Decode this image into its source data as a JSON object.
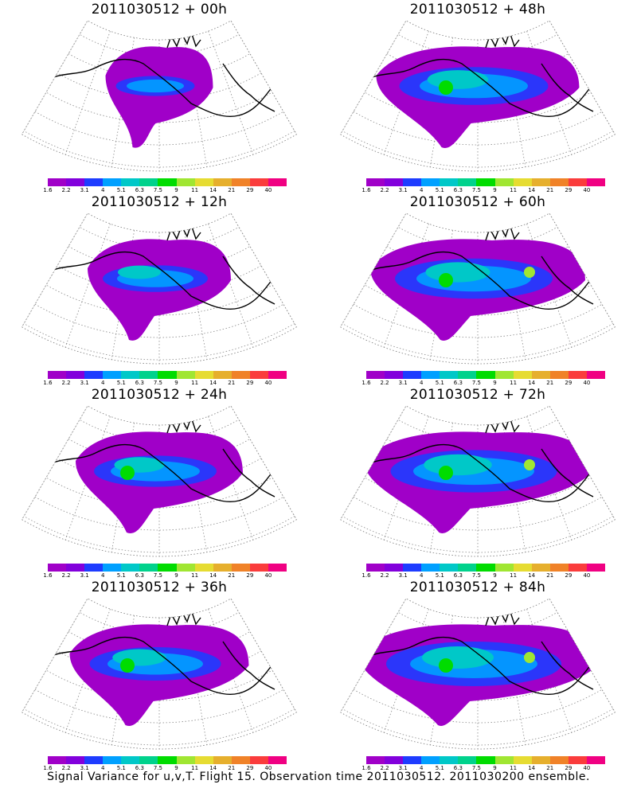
{
  "panels": [
    {
      "title": "2011030512 + 00h",
      "label": "00h",
      "intensity": 0.1,
      "extent": 0.45
    },
    {
      "title": "2011030512 + 48h",
      "label": "48h",
      "intensity": 0.4,
      "extent": 0.85
    },
    {
      "title": "2011030512 + 12h",
      "label": "12h",
      "intensity": 0.2,
      "extent": 0.6
    },
    {
      "title": "2011030512 + 60h",
      "label": "60h",
      "intensity": 0.45,
      "extent": 0.9
    },
    {
      "title": "2011030512 + 24h",
      "label": "24h",
      "intensity": 0.3,
      "extent": 0.7
    },
    {
      "title": "2011030512 + 72h",
      "label": "72h",
      "intensity": 0.5,
      "extent": 0.95
    },
    {
      "title": "2011030512 + 36h",
      "label": "36h",
      "intensity": 0.35,
      "extent": 0.75
    },
    {
      "title": "2011030512 + 84h",
      "label": "84h",
      "intensity": 0.55,
      "extent": 1.0
    }
  ],
  "colorbar": {
    "labels": [
      "1.6",
      "2.2",
      "3.1",
      "4",
      "5.1",
      "6.3",
      "7.5",
      "9",
      "11",
      "14",
      "21",
      "29",
      "40"
    ],
    "colors": [
      "#a000c8",
      "#8200dc",
      "#1e3cff",
      "#00a0ff",
      "#00c8c8",
      "#00d28c",
      "#00dc00",
      "#a0e632",
      "#e6dc32",
      "#e6af2d",
      "#f08228",
      "#fa3c3c",
      "#f00082"
    ]
  },
  "footer": "Signal Variance for u,v,T. Flight 15. Observation time 2011030512. 2011030200 ensemble."
}
